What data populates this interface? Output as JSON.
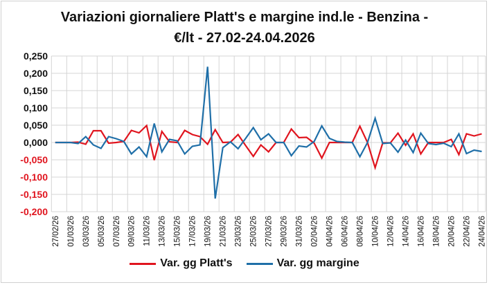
{
  "chart_data": {
    "type": "line",
    "title_line1": "Variazioni giornaliere Platt's e margine ind.le - Benzina -",
    "title_line2": "€/lt - 27.02-24.04.2026",
    "xlabel": "",
    "ylabel": "",
    "ylim": [
      -0.2,
      0.25
    ],
    "yticks": [
      "0,250",
      "0,200",
      "0,150",
      "0,100",
      "0,050",
      "0,000",
      "-0,050",
      "-0,100",
      "-0,150",
      "-0,200"
    ],
    "ytick_values": [
      0.25,
      0.2,
      0.15,
      0.1,
      0.05,
      0,
      -0.05,
      -0.1,
      -0.15,
      -0.2
    ],
    "grid": true,
    "legend_position": "bottom",
    "categories": [
      "27/02/26",
      "28/02/26",
      "01/03/26",
      "02/03/26",
      "03/03/26",
      "04/03/26",
      "05/03/26",
      "06/03/26",
      "07/03/26",
      "08/03/26",
      "09/03/26",
      "10/03/26",
      "11/03/26",
      "12/03/26",
      "13/03/26",
      "14/03/26",
      "15/03/26",
      "16/03/26",
      "17/03/26",
      "18/03/26",
      "19/03/26",
      "20/03/26",
      "21/03/26",
      "22/03/26",
      "23/03/26",
      "24/03/26",
      "25/03/26",
      "26/03/26",
      "27/03/26",
      "28/03/26",
      "29/03/26",
      "30/03/26",
      "31/03/26",
      "01/04/26",
      "02/04/26",
      "03/04/26",
      "04/04/26",
      "05/04/26",
      "06/04/26",
      "07/04/26",
      "08/04/26",
      "09/04/26",
      "10/04/26",
      "11/04/26",
      "12/04/26",
      "13/04/26",
      "14/04/26",
      "15/04/26",
      "16/04/26",
      "17/04/26",
      "18/04/26",
      "19/04/26",
      "20/04/26",
      "21/04/26",
      "22/04/26",
      "23/04/26",
      "24/04/26"
    ],
    "label_every": 2,
    "series": [
      {
        "name": "Var. gg Platt's",
        "color": "#e0141e",
        "values": [
          0,
          0,
          0,
          0.001,
          -0.005,
          0.034,
          0.034,
          -0.002,
          0,
          0.003,
          0.035,
          0.028,
          0.049,
          -0.051,
          0.032,
          0.002,
          0,
          0.035,
          0.023,
          0.017,
          -0.005,
          0.037,
          0,
          0.001,
          0.023,
          -0.009,
          -0.04,
          -0.007,
          -0.027,
          0,
          0,
          0.039,
          0.014,
          0.015,
          -0.002,
          -0.045,
          0,
          0,
          0,
          0,
          0.047,
          0,
          -0.073,
          -0.001,
          -0.001,
          0.027,
          -0.008,
          0.025,
          -0.033,
          0,
          0,
          0,
          0.009,
          -0.035,
          0.025,
          0.019,
          0.025
        ]
      },
      {
        "name": "Var. gg margine",
        "color": "#1f6fa8",
        "values": [
          0,
          0,
          0,
          -0.003,
          0.017,
          -0.007,
          -0.017,
          0.017,
          0.011,
          0.003,
          -0.033,
          -0.013,
          -0.041,
          0.055,
          -0.027,
          0.009,
          0.005,
          -0.033,
          -0.011,
          -0.007,
          0.219,
          -0.162,
          -0.015,
          0.002,
          -0.018,
          0.012,
          0.043,
          0.008,
          0.025,
          0,
          0,
          -0.038,
          -0.01,
          -0.013,
          0.003,
          0.048,
          0.012,
          0.003,
          0.001,
          0,
          -0.041,
          0,
          0.07,
          -0.003,
          -0.001,
          -0.028,
          0.007,
          -0.029,
          0.027,
          -0.003,
          -0.006,
          -0.002,
          -0.012,
          0.025,
          -0.032,
          -0.022,
          -0.026
        ]
      }
    ],
    "negative_tick_color": "#e0141e"
  }
}
